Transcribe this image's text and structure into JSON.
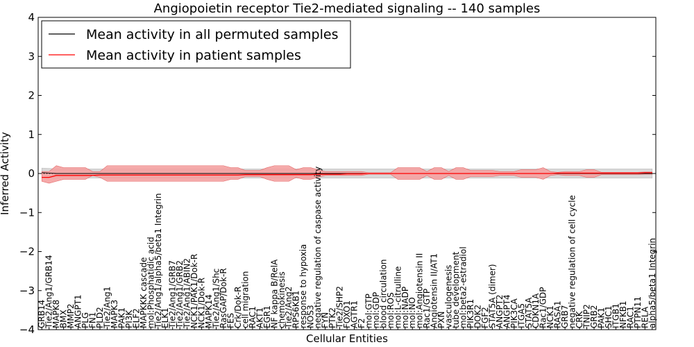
{
  "chart_data": {
    "type": "line",
    "title": "Angiopoietin receptor Tie2-mediated signaling -- 140 samples",
    "xlabel": "Cellular Entities",
    "ylabel": "Inferred Activity",
    "ylim": [
      -4,
      4
    ],
    "yticks": [
      "−4",
      "−3",
      "−2",
      "−1",
      "0",
      "1",
      "2",
      "3",
      "4"
    ],
    "legend": {
      "location": "top-left",
      "entries": [
        {
          "label": "Mean activity in all permuted samples",
          "color": "#000000"
        },
        {
          "label": "Mean activity in patient samples",
          "color": "#ff0000"
        }
      ]
    },
    "categories": [
      "GRB14",
      "Tie2/Ang1/GRB14",
      "MAPK8",
      "BMX",
      "MMP2",
      "ANGPT1",
      "PLG",
      "FN1",
      "PLD2",
      "Tie2/Ang1",
      "MAPK3",
      "PAK1",
      "PI3K",
      "ELF2",
      "MAPKKK cascade",
      "mol:Phosphatidic acid",
      "Tie2/Ang1/alpha5/beta1 Integrin",
      "ELK1",
      "Tie2/Ang1/GRB7",
      "Tie2/Ang1/GRB2",
      "Tie2/Ang1/ABIN2",
      "NCK1/PAK1/Dok-R",
      "NCK1/Dok-R",
      "MAPK14",
      "Tie2/Ang1/Shc",
      "RasGAP/Dok-R",
      "FES",
      "Crk/Dok-R",
      "cell migration",
      "RAC1",
      "AKT1",
      "EGR1",
      "NF kappa B/RelA",
      "chemokinesis",
      "Tie2/Ang2",
      "RPS6KB1",
      "response to hypoxia",
      "NOS3",
      "negative regulation of caspase activity",
      "FYN",
      "PTK2",
      "Tie2/SHP2",
      "FOXO1",
      "AGTR1",
      "F2",
      "mol:GTP",
      "mol:GDP",
      "blood circulation",
      "mol:ROS",
      "mol:L-citrulline",
      "mol:NADP",
      "mol:NO",
      "mol:Angiotensin II",
      "Rac1/GTP",
      "Angiotensin II/AT1",
      "PXN",
      "vasculogenesis",
      "tube development",
      "mol:beta2-estradiol",
      "PIK3R1",
      "DOK2",
      "FGF2",
      "STAT5A (dimer)",
      "ANGPT2",
      "ANGPT4",
      "PIK3CA",
      "ITGA5",
      "STAT5A",
      "CDKN1A",
      "Rac1/GDP",
      "NCK1",
      "RASA1",
      "GRB7",
      "negative regulation of cell cycle",
      "CRK",
      "TNIP2",
      "GRB2",
      "PAK1",
      "SHC1",
      "ITGB1",
      "NFKB1",
      "RAC1",
      "PTPN11",
      "RELA",
      "alpha5/beta1 Integrin"
    ],
    "series": [
      {
        "name": "Mean activity in patient samples",
        "color": "#ff0000",
        "values": [
          -0.1,
          -0.1,
          -0.05,
          -0.05,
          -0.05,
          -0.05,
          -0.05,
          -0.05,
          -0.04,
          -0.04,
          -0.04,
          -0.04,
          -0.04,
          -0.04,
          -0.04,
          -0.04,
          -0.04,
          -0.04,
          -0.04,
          -0.04,
          -0.04,
          -0.04,
          -0.04,
          -0.04,
          -0.04,
          -0.04,
          -0.04,
          -0.04,
          -0.03,
          -0.03,
          -0.03,
          -0.03,
          -0.03,
          -0.03,
          -0.03,
          -0.03,
          -0.03,
          -0.03,
          -0.02,
          -0.02,
          -0.02,
          -0.02,
          -0.01,
          -0.01,
          -0.01,
          0,
          0,
          0,
          0,
          0,
          0,
          0,
          0,
          0,
          0,
          0,
          0,
          0,
          0,
          0,
          0,
          0,
          0,
          0,
          0,
          0,
          0,
          0,
          0,
          0,
          0,
          0.01,
          0.01,
          0.01,
          0.01,
          0.01,
          0.01,
          0.01,
          0.01,
          0.01,
          0.01,
          0.01,
          0.01,
          0.02,
          0.02
        ],
        "band_upper": [
          0.05,
          0.05,
          0.2,
          0.15,
          0.15,
          0.15,
          0.15,
          0.05,
          0.05,
          0.2,
          0.2,
          0.2,
          0.2,
          0.2,
          0.2,
          0.2,
          0.2,
          0.2,
          0.2,
          0.2,
          0.2,
          0.2,
          0.2,
          0.2,
          0.2,
          0.2,
          0.15,
          0.15,
          0.08,
          0.08,
          0.08,
          0.15,
          0.2,
          0.2,
          0.2,
          0.1,
          0.15,
          0.15,
          0.1,
          0.05,
          0.05,
          0.05,
          0.05,
          0.05,
          0.05,
          0.02,
          0.02,
          0.02,
          0.02,
          0.15,
          0.15,
          0.15,
          0.15,
          0.05,
          0.15,
          0.15,
          0.05,
          0.15,
          0.15,
          0.08,
          0.08,
          0.08,
          0.08,
          0.05,
          0.05,
          0.05,
          0.1,
          0.1,
          0.1,
          0.15,
          0.05,
          0.03,
          0.05,
          0.05,
          0.05,
          0.1,
          0.1,
          0.03,
          0.03,
          0.03,
          0.03,
          0.03,
          0.03,
          0.04,
          0.04
        ],
        "band_lower": [
          -0.2,
          -0.25,
          -0.2,
          -0.15,
          -0.15,
          -0.15,
          -0.15,
          -0.05,
          -0.1,
          -0.2,
          -0.2,
          -0.2,
          -0.2,
          -0.2,
          -0.2,
          -0.2,
          -0.2,
          -0.2,
          -0.2,
          -0.2,
          -0.2,
          -0.2,
          -0.2,
          -0.2,
          -0.2,
          -0.2,
          -0.15,
          -0.15,
          -0.08,
          -0.08,
          -0.08,
          -0.15,
          -0.2,
          -0.2,
          -0.2,
          -0.1,
          -0.15,
          -0.15,
          -0.1,
          -0.05,
          -0.05,
          -0.05,
          -0.05,
          -0.05,
          -0.05,
          -0.02,
          -0.02,
          -0.02,
          -0.02,
          -0.15,
          -0.15,
          -0.15,
          -0.15,
          -0.05,
          -0.15,
          -0.15,
          -0.05,
          -0.15,
          -0.15,
          -0.08,
          -0.08,
          -0.08,
          -0.08,
          -0.05,
          -0.05,
          -0.05,
          -0.1,
          -0.1,
          -0.1,
          -0.15,
          -0.05,
          -0.03,
          -0.05,
          -0.05,
          -0.05,
          -0.1,
          -0.1,
          -0.03,
          -0.03,
          -0.03,
          -0.03,
          -0.03,
          -0.03,
          -0.02,
          -0.02
        ]
      },
      {
        "name": "Mean activity in all permuted samples",
        "color": "#000000",
        "values": [
          0.02,
          0.01,
          0,
          0,
          0,
          0,
          0,
          0,
          0,
          0,
          0,
          0,
          0,
          0,
          0,
          0,
          0,
          0,
          0,
          0,
          0,
          0,
          0,
          0,
          0,
          0,
          0,
          0,
          0,
          0,
          0,
          0,
          0,
          0,
          0,
          0,
          0,
          0,
          0,
          0,
          0,
          0,
          0,
          0,
          0,
          0,
          0,
          0,
          0,
          0,
          0,
          0,
          0,
          0,
          0,
          0,
          0,
          0,
          0,
          0,
          0,
          0,
          0,
          0,
          0,
          0,
          0,
          0,
          0,
          0,
          0,
          0,
          0,
          0,
          0,
          0,
          0,
          0,
          0,
          0,
          0,
          0,
          0,
          0,
          0
        ],
        "band_halfwidth": 0.12
      }
    ],
    "colors": {
      "patient_band": "#f4a1a1",
      "permuted_band": "#d9d9d9"
    }
  }
}
